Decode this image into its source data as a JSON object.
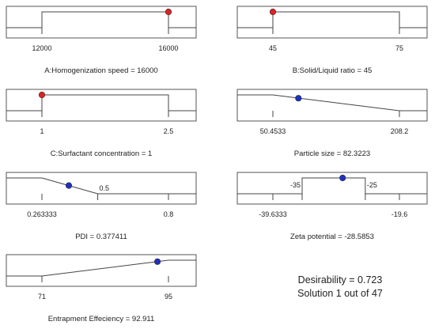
{
  "chart_data": [
    {
      "type": "line",
      "title": "A:Homogenization speed = 16000",
      "ramp_kind": "factor",
      "ticks": [
        {
          "value": 12000,
          "label": "12000"
        },
        {
          "value": 16000,
          "label": "16000"
        }
      ],
      "domain": [
        12000,
        16000
      ],
      "x": [
        12000,
        16000
      ],
      "y": [
        1,
        1
      ],
      "solution": {
        "x": 16000,
        "y": 1
      },
      "point_color": "#dd2222"
    },
    {
      "type": "line",
      "title": "B:Solid/Liquid ratio = 45",
      "ramp_kind": "factor",
      "ticks": [
        {
          "value": 45,
          "label": "45"
        },
        {
          "value": 75,
          "label": "75"
        }
      ],
      "domain": [
        45,
        75
      ],
      "x": [
        45,
        75
      ],
      "y": [
        1,
        1
      ],
      "solution": {
        "x": 45,
        "y": 1
      },
      "point_color": "#dd2222"
    },
    {
      "type": "line",
      "title": "C:Surfactant concentration = 1",
      "ramp_kind": "factor",
      "ticks": [
        {
          "value": 1,
          "label": "1"
        },
        {
          "value": 2.5,
          "label": "2.5"
        }
      ],
      "domain": [
        1,
        2.5
      ],
      "x": [
        1,
        2.5
      ],
      "y": [
        1,
        1
      ],
      "solution": {
        "x": 1,
        "y": 1
      },
      "point_color": "#dd2222"
    },
    {
      "type": "line",
      "title": "Particle size = 82.3223",
      "ramp_kind": "minimize",
      "ticks": [
        {
          "value": 50.4533,
          "label": "50.4533"
        },
        {
          "value": 208.2,
          "label": "208.2"
        }
      ],
      "domain": [
        50.4533,
        208.2
      ],
      "x": [
        50.4533,
        208.2
      ],
      "y": [
        1,
        0
      ],
      "solution": {
        "x": 82.3223,
        "y": 0.79
      },
      "point_color": "#1f2fbf"
    },
    {
      "type": "line",
      "title": "PDI = 0.377411",
      "ramp_kind": "minimize",
      "ticks": [
        {
          "value": 0.263333,
          "label": "0.263333"
        },
        {
          "value": 0.5,
          "label": "0.5"
        },
        {
          "value": 0.8,
          "label": "0.8"
        }
      ],
      "domain": [
        0.263333,
        0.8
      ],
      "x": [
        0.263333,
        0.5
      ],
      "y": [
        1,
        0
      ],
      "solution": {
        "x": 0.377411,
        "y": 0.52
      },
      "point_color": "#1f2fbf"
    },
    {
      "type": "line",
      "title": "Zeta potential = -28.5853",
      "ramp_kind": "in-range",
      "ticks": [
        {
          "value": -39.6333,
          "label": "-39.6333"
        },
        {
          "value": -35,
          "label": "-35"
        },
        {
          "value": -25,
          "label": "-25"
        },
        {
          "value": -19.6,
          "label": "-19.6"
        }
      ],
      "domain": [
        -39.6333,
        -19.6
      ],
      "x": [
        -35,
        -25
      ],
      "y": [
        1,
        1
      ],
      "solution": {
        "x": -28.5853,
        "y": 1
      },
      "point_color": "#1f2fbf"
    },
    {
      "type": "line",
      "title": "Entrapment Effeciency = 92.911",
      "ramp_kind": "maximize",
      "ticks": [
        {
          "value": 71,
          "label": "71"
        },
        {
          "value": 95,
          "label": "95"
        }
      ],
      "domain": [
        71,
        95
      ],
      "x": [
        71,
        95
      ],
      "y": [
        0,
        1
      ],
      "solution": {
        "x": 92.911,
        "y": 0.91
      },
      "point_color": "#1f2fbf"
    }
  ],
  "summary": {
    "desirability": "Desirability = 0.723",
    "solution": "Solution 1 out of 47"
  }
}
